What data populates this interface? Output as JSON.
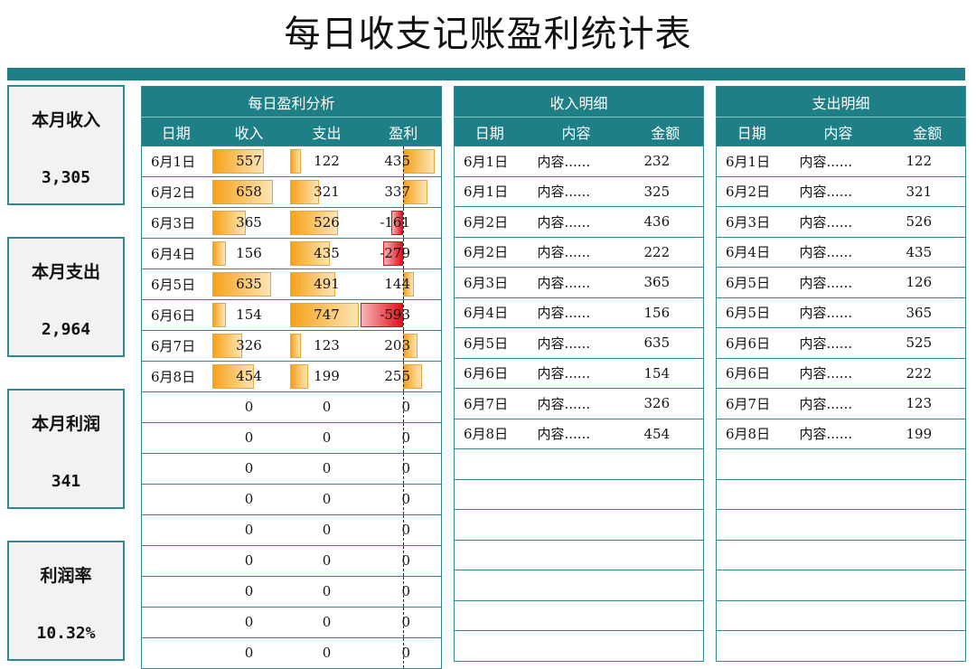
{
  "title": "每日收支记账盈利统计表",
  "summary": [
    {
      "label": "本月收入",
      "value": "3,305"
    },
    {
      "label": "本月支出",
      "value": "2,964"
    },
    {
      "label": "本月利润",
      "value": "341"
    },
    {
      "label": "利润率",
      "value": "10.32%"
    }
  ],
  "analysis": {
    "title": "每日盈利分析",
    "headers": [
      "日期",
      "收入",
      "支出",
      "盈利"
    ],
    "rows": [
      {
        "date": "6月1日",
        "income": 557,
        "expense": 122,
        "profit": 435
      },
      {
        "date": "6月2日",
        "income": 658,
        "expense": 321,
        "profit": 337
      },
      {
        "date": "6月3日",
        "income": 365,
        "expense": 526,
        "profit": -161
      },
      {
        "date": "6月4日",
        "income": 156,
        "expense": 435,
        "profit": -279
      },
      {
        "date": "6月5日",
        "income": 635,
        "expense": 491,
        "profit": 144
      },
      {
        "date": "6月6日",
        "income": 154,
        "expense": 747,
        "profit": -593
      },
      {
        "date": "6月7日",
        "income": 326,
        "expense": 123,
        "profit": 203
      },
      {
        "date": "6月8日",
        "income": 454,
        "expense": 199,
        "profit": 255
      },
      {
        "date": "",
        "income": 0,
        "expense": 0,
        "profit": 0
      },
      {
        "date": "",
        "income": 0,
        "expense": 0,
        "profit": 0
      },
      {
        "date": "",
        "income": 0,
        "expense": 0,
        "profit": 0
      },
      {
        "date": "",
        "income": 0,
        "expense": 0,
        "profit": 0
      },
      {
        "date": "",
        "income": 0,
        "expense": 0,
        "profit": 0
      },
      {
        "date": "",
        "income": 0,
        "expense": 0,
        "profit": 0
      },
      {
        "date": "",
        "income": 0,
        "expense": 0,
        "profit": 0
      },
      {
        "date": "",
        "income": 0,
        "expense": 0,
        "profit": 0
      },
      {
        "date": "",
        "income": 0,
        "expense": 0,
        "profit": 0
      }
    ]
  },
  "income_detail": {
    "title": "收入明细",
    "headers": [
      "日期",
      "内容",
      "金额"
    ],
    "rows": [
      {
        "date": "6月1日",
        "content": "内容......",
        "amount": "232"
      },
      {
        "date": "6月1日",
        "content": "内容......",
        "amount": "325"
      },
      {
        "date": "6月2日",
        "content": "内容......",
        "amount": "436"
      },
      {
        "date": "6月2日",
        "content": "内容......",
        "amount": "222"
      },
      {
        "date": "6月3日",
        "content": "内容......",
        "amount": "365"
      },
      {
        "date": "6月4日",
        "content": "内容......",
        "amount": "156"
      },
      {
        "date": "6月5日",
        "content": "内容......",
        "amount": "635"
      },
      {
        "date": "6月6日",
        "content": "内容......",
        "amount": "154"
      },
      {
        "date": "6月7日",
        "content": "内容......",
        "amount": "326"
      },
      {
        "date": "6月8日",
        "content": "内容......",
        "amount": "454"
      }
    ],
    "total_rows": 17
  },
  "expense_detail": {
    "title": "支出明细",
    "headers": [
      "日期",
      "内容",
      "金额"
    ],
    "rows": [
      {
        "date": "6月1日",
        "content": "内容......",
        "amount": "122"
      },
      {
        "date": "6月2日",
        "content": "内容......",
        "amount": "321"
      },
      {
        "date": "6月3日",
        "content": "内容......",
        "amount": "526"
      },
      {
        "date": "6月4日",
        "content": "内容......",
        "amount": "435"
      },
      {
        "date": "6月5日",
        "content": "内容......",
        "amount": "126"
      },
      {
        "date": "6月5日",
        "content": "内容......",
        "amount": "365"
      },
      {
        "date": "6月6日",
        "content": "内容......",
        "amount": "525"
      },
      {
        "date": "6月6日",
        "content": "内容......",
        "amount": "222"
      },
      {
        "date": "6月7日",
        "content": "内容......",
        "amount": "123"
      },
      {
        "date": "6月8日",
        "content": "内容......",
        "amount": "199"
      }
    ],
    "total_rows": 17
  },
  "colors": {
    "teal": "#1f7f86",
    "bar_orange": "#f6a21a",
    "bar_red": "#e0111a"
  }
}
